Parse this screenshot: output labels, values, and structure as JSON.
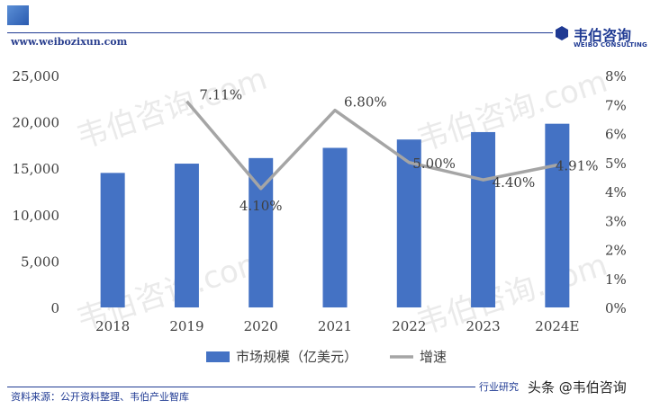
{
  "header": {
    "site_url": "www.weibozixun.com",
    "brand_cn": "韦伯咨询",
    "brand_en": "WEIBO CONSULTING"
  },
  "watermark": "韦伯咨询.com",
  "footer": {
    "source": "资料来源：公开资料整理、韦伯产业智库",
    "right_text": "行业研究",
    "credit": "头条 @韦伯咨询"
  },
  "colors": {
    "bar": "#4472c4",
    "line": "#a5a5a5",
    "brand": "#1f3a93"
  },
  "chart_data": {
    "type": "bar",
    "categories": [
      "2018",
      "2019",
      "2020",
      "2021",
      "2022",
      "2023",
      "2024E"
    ],
    "series": [
      {
        "name": "市场规模（亿美元）",
        "type": "bar",
        "axis": "left",
        "values": [
          14500,
          15500,
          16100,
          17200,
          18100,
          18900,
          19800
        ]
      },
      {
        "name": "增速",
        "type": "line",
        "axis": "right",
        "values": [
          null,
          7.11,
          4.1,
          6.8,
          5.0,
          4.4,
          4.91
        ],
        "labels": [
          "",
          "7.11%",
          "4.10%",
          "6.80%",
          "5.00%",
          "4.40%",
          "4.91%"
        ]
      }
    ],
    "y_left": {
      "min": 0,
      "max": 25000,
      "ticks": [
        "0",
        "5,000",
        "10,000",
        "15,000",
        "20,000",
        "25,000"
      ]
    },
    "y_right": {
      "min": 0,
      "max": 8,
      "ticks": [
        "0%",
        "1%",
        "2%",
        "3%",
        "4%",
        "5%",
        "6%",
        "7%",
        "8%"
      ]
    },
    "legend_position": "bottom",
    "grid": false
  }
}
